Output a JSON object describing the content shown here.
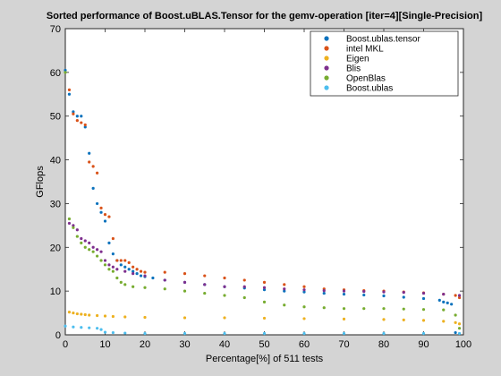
{
  "chart_data": {
    "type": "scatter",
    "title": "Sorted performance of Boost.uBLAS.Tensor for the gemv-operation [iter=4][Single-Precision]",
    "xlabel": "Percentage[%] of 511 tests",
    "ylabel": "GFlops",
    "xlim": [
      0,
      100
    ],
    "ylim": [
      0,
      70
    ],
    "xticks": [
      "0",
      "10",
      "20",
      "30",
      "40",
      "50",
      "60",
      "70",
      "80",
      "90",
      "100"
    ],
    "yticks": [
      "0",
      "10",
      "20",
      "30",
      "40",
      "50",
      "60",
      "70"
    ],
    "grid": false,
    "legend_position": "top-right",
    "series": [
      {
        "name": "Boost.ublas.tensor",
        "color": "#0b72bd",
        "points": [
          [
            0,
            60.5
          ],
          [
            1,
            55
          ],
          [
            2,
            51
          ],
          [
            3,
            50
          ],
          [
            4,
            50
          ],
          [
            5,
            47.5
          ],
          [
            6,
            41.5
          ],
          [
            7,
            33.5
          ],
          [
            8,
            30
          ],
          [
            9,
            28
          ],
          [
            10,
            26
          ],
          [
            11,
            21
          ],
          [
            12,
            18.5
          ],
          [
            13,
            17
          ],
          [
            14,
            16
          ],
          [
            15,
            15.5
          ],
          [
            16,
            15
          ],
          [
            17,
            14.5
          ],
          [
            18,
            14
          ],
          [
            19,
            13.5
          ],
          [
            20,
            13.3
          ],
          [
            22,
            13
          ],
          [
            25,
            12.5
          ],
          [
            30,
            12
          ],
          [
            35,
            11.5
          ],
          [
            40,
            11
          ],
          [
            45,
            10.7
          ],
          [
            50,
            10.3
          ],
          [
            55,
            10
          ],
          [
            60,
            9.8
          ],
          [
            65,
            9.5
          ],
          [
            70,
            9.3
          ],
          [
            75,
            9.1
          ],
          [
            80,
            8.9
          ],
          [
            85,
            8.6
          ],
          [
            90,
            8.3
          ],
          [
            94,
            7.9
          ],
          [
            95,
            7.5
          ],
          [
            96,
            7.3
          ],
          [
            97,
            7
          ],
          [
            98,
            0.5
          ]
        ]
      },
      {
        "name": "intel MKL",
        "color": "#d95219",
        "points": [
          [
            1,
            56
          ],
          [
            2,
            50.5
          ],
          [
            3,
            49
          ],
          [
            4,
            48.5
          ],
          [
            5,
            48
          ],
          [
            6,
            39.5
          ],
          [
            7,
            38.5
          ],
          [
            8,
            37
          ],
          [
            9,
            29
          ],
          [
            10,
            27.5
          ],
          [
            11,
            27
          ],
          [
            12,
            22
          ],
          [
            13,
            17
          ],
          [
            14,
            17
          ],
          [
            15,
            17
          ],
          [
            16,
            16.5
          ],
          [
            17,
            15.5
          ],
          [
            18,
            15
          ],
          [
            19,
            14.5
          ],
          [
            20,
            14.3
          ],
          [
            25,
            14.3
          ],
          [
            30,
            14
          ],
          [
            35,
            13.5
          ],
          [
            40,
            13
          ],
          [
            45,
            12.5
          ],
          [
            50,
            12
          ],
          [
            55,
            11.5
          ],
          [
            60,
            11
          ],
          [
            65,
            10.5
          ],
          [
            70,
            10.3
          ],
          [
            75,
            10.1
          ],
          [
            80,
            10
          ],
          [
            85,
            9.8
          ],
          [
            90,
            9.6
          ],
          [
            95,
            9.3
          ],
          [
            98,
            9
          ],
          [
            99,
            8.5
          ]
        ]
      },
      {
        "name": "Eigen",
        "color": "#edb120",
        "points": [
          [
            1,
            5.2
          ],
          [
            2,
            5
          ],
          [
            3,
            4.8
          ],
          [
            4,
            4.7
          ],
          [
            5,
            4.6
          ],
          [
            6,
            4.5
          ],
          [
            8,
            4.4
          ],
          [
            10,
            4.3
          ],
          [
            12,
            4.2
          ],
          [
            15,
            4.1
          ],
          [
            20,
            4
          ],
          [
            30,
            3.9
          ],
          [
            40,
            3.9
          ],
          [
            50,
            3.8
          ],
          [
            60,
            3.7
          ],
          [
            70,
            3.6
          ],
          [
            80,
            3.5
          ],
          [
            85,
            3.4
          ],
          [
            90,
            3.3
          ],
          [
            95,
            3.1
          ],
          [
            98,
            2.8
          ],
          [
            99,
            2.5
          ]
        ]
      },
      {
        "name": "Blis",
        "color": "#7e2f8e",
        "points": [
          [
            1,
            25.5
          ],
          [
            2,
            25
          ],
          [
            3,
            24
          ],
          [
            4,
            22
          ],
          [
            5,
            21.5
          ],
          [
            6,
            21
          ],
          [
            7,
            20
          ],
          [
            8,
            19.5
          ],
          [
            9,
            19
          ],
          [
            10,
            17
          ],
          [
            11,
            16
          ],
          [
            12,
            15.5
          ],
          [
            13,
            15
          ],
          [
            15,
            14.5
          ],
          [
            17,
            14
          ],
          [
            20,
            13.5
          ],
          [
            25,
            12.5
          ],
          [
            30,
            12
          ],
          [
            35,
            11.5
          ],
          [
            40,
            11
          ],
          [
            45,
            11
          ],
          [
            50,
            10.8
          ],
          [
            55,
            10.5
          ],
          [
            60,
            10.3
          ],
          [
            65,
            10.1
          ],
          [
            70,
            10
          ],
          [
            75,
            9.9
          ],
          [
            80,
            9.8
          ],
          [
            85,
            9.7
          ],
          [
            90,
            9.5
          ],
          [
            95,
            9.3
          ],
          [
            99,
            9
          ]
        ]
      },
      {
        "name": "OpenBlas",
        "color": "#77ac30",
        "points": [
          [
            0,
            60
          ],
          [
            1,
            26.5
          ],
          [
            2,
            24.5
          ],
          [
            3,
            22.5
          ],
          [
            4,
            21
          ],
          [
            5,
            20
          ],
          [
            6,
            19.5
          ],
          [
            7,
            19
          ],
          [
            8,
            18
          ],
          [
            9,
            17
          ],
          [
            10,
            16
          ],
          [
            11,
            15
          ],
          [
            12,
            14.5
          ],
          [
            13,
            13
          ],
          [
            14,
            12
          ],
          [
            15,
            11.5
          ],
          [
            17,
            11
          ],
          [
            20,
            10.8
          ],
          [
            25,
            10.5
          ],
          [
            30,
            10
          ],
          [
            35,
            9.5
          ],
          [
            40,
            9
          ],
          [
            45,
            8.5
          ],
          [
            50,
            7.5
          ],
          [
            55,
            6.8
          ],
          [
            60,
            6.4
          ],
          [
            65,
            6.2
          ],
          [
            70,
            6
          ],
          [
            75,
            6
          ],
          [
            80,
            6
          ],
          [
            85,
            5.9
          ],
          [
            90,
            5.8
          ],
          [
            95,
            5.7
          ],
          [
            98,
            4.5
          ],
          [
            99,
            1.5
          ]
        ]
      },
      {
        "name": "Boost.ublas",
        "color": "#4dbeee",
        "points": [
          [
            0,
            2
          ],
          [
            2,
            1.8
          ],
          [
            4,
            1.7
          ],
          [
            6,
            1.6
          ],
          [
            8,
            1.5
          ],
          [
            9,
            1.2
          ],
          [
            10,
            0.6
          ],
          [
            12,
            0.5
          ],
          [
            15,
            0.4
          ],
          [
            20,
            0.3
          ],
          [
            30,
            0.3
          ],
          [
            40,
            0.3
          ],
          [
            50,
            0.3
          ],
          [
            60,
            0.3
          ],
          [
            70,
            0.3
          ],
          [
            80,
            0.3
          ],
          [
            90,
            0.3
          ],
          [
            99,
            0.3
          ]
        ]
      }
    ]
  }
}
